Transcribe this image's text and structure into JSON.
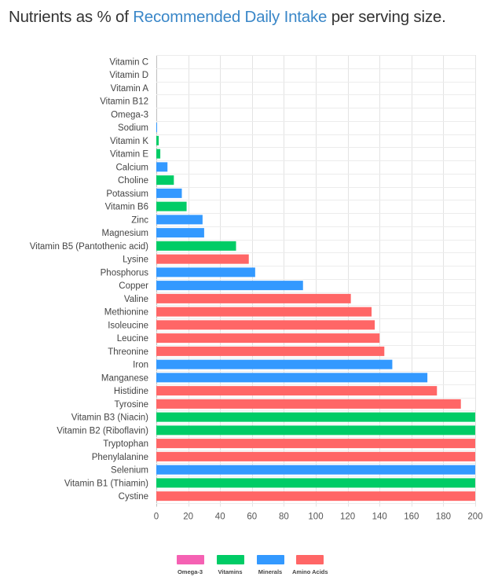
{
  "title": {
    "prefix": "Nutrients as % of ",
    "highlight": "Recommended Daily Intake",
    "suffix": " per serving size."
  },
  "colors": {
    "Omega-3": "#f561b3",
    "Vitamins": "#00cc66",
    "Minerals": "#3399ff",
    "Amino Acids": "#ff6666"
  },
  "chart_data": {
    "type": "bar",
    "orientation": "horizontal",
    "title": "Nutrients as % of Recommended Daily Intake per serving size.",
    "xlim": [
      0,
      200
    ],
    "xticks": [
      0,
      20,
      40,
      60,
      80,
      100,
      120,
      140,
      160,
      180,
      200
    ],
    "grid": true,
    "legend_position": "bottom",
    "legend": [
      "Omega-3",
      "Vitamins",
      "Minerals",
      "Amino Acids"
    ],
    "bars": [
      {
        "label": "Vitamin C",
        "value": 0,
        "group": "Vitamins"
      },
      {
        "label": "Vitamin D",
        "value": 0,
        "group": "Vitamins"
      },
      {
        "label": "Vitamin A",
        "value": 0,
        "group": "Vitamins"
      },
      {
        "label": "Vitamin B12",
        "value": 0,
        "group": "Vitamins"
      },
      {
        "label": "Omega-3",
        "value": 0,
        "group": "Omega-3"
      },
      {
        "label": "Sodium",
        "value": 0.5,
        "group": "Minerals"
      },
      {
        "label": "Vitamin K",
        "value": 1.5,
        "group": "Vitamins"
      },
      {
        "label": "Vitamin E",
        "value": 2.5,
        "group": "Vitamins"
      },
      {
        "label": "Calcium",
        "value": 7,
        "group": "Minerals"
      },
      {
        "label": "Choline",
        "value": 11,
        "group": "Vitamins"
      },
      {
        "label": "Potassium",
        "value": 16,
        "group": "Minerals"
      },
      {
        "label": "Vitamin B6",
        "value": 19,
        "group": "Vitamins"
      },
      {
        "label": "Zinc",
        "value": 29,
        "group": "Minerals"
      },
      {
        "label": "Magnesium",
        "value": 30,
        "group": "Minerals"
      },
      {
        "label": "Vitamin B5 (Pantothenic acid)",
        "value": 50,
        "group": "Vitamins"
      },
      {
        "label": "Lysine",
        "value": 58,
        "group": "Amino Acids"
      },
      {
        "label": "Phosphorus",
        "value": 62,
        "group": "Minerals"
      },
      {
        "label": "Copper",
        "value": 92,
        "group": "Minerals"
      },
      {
        "label": "Valine",
        "value": 122,
        "group": "Amino Acids"
      },
      {
        "label": "Methionine",
        "value": 135,
        "group": "Amino Acids"
      },
      {
        "label": "Isoleucine",
        "value": 137,
        "group": "Amino Acids"
      },
      {
        "label": "Leucine",
        "value": 140,
        "group": "Amino Acids"
      },
      {
        "label": "Threonine",
        "value": 143,
        "group": "Amino Acids"
      },
      {
        "label": "Iron",
        "value": 148,
        "group": "Minerals"
      },
      {
        "label": "Manganese",
        "value": 170,
        "group": "Minerals"
      },
      {
        "label": "Histidine",
        "value": 176,
        "group": "Amino Acids"
      },
      {
        "label": "Tyrosine",
        "value": 191,
        "group": "Amino Acids"
      },
      {
        "label": "Vitamin B3 (Niacin)",
        "value": 200,
        "group": "Vitamins"
      },
      {
        "label": "Vitamin B2 (Riboflavin)",
        "value": 200,
        "group": "Vitamins"
      },
      {
        "label": "Tryptophan",
        "value": 200,
        "group": "Amino Acids"
      },
      {
        "label": "Phenylalanine",
        "value": 200,
        "group": "Amino Acids"
      },
      {
        "label": "Selenium",
        "value": 200,
        "group": "Minerals"
      },
      {
        "label": "Vitamin B1 (Thiamin)",
        "value": 200,
        "group": "Vitamins"
      },
      {
        "label": "Cystine",
        "value": 200,
        "group": "Amino Acids"
      }
    ]
  }
}
